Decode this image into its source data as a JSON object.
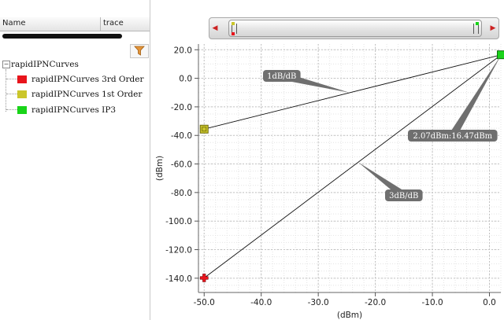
{
  "panel": {
    "col_name": "Name",
    "col_trace": "trace",
    "root_label": "rapidIPNCurves",
    "items": [
      {
        "label": "rapidIPNCurves  3rd Order",
        "color": "#e8141c"
      },
      {
        "label": "rapidIPNCurves  1st Order",
        "color": "#cbc62a"
      },
      {
        "label": "rapidIPNCurves  IP3",
        "color": "#19d419"
      }
    ]
  },
  "chart_data": {
    "type": "line",
    "xlabel": "(dBm)",
    "ylabel": "(dBm)",
    "xlim": [
      -51,
      2
    ],
    "ylim": [
      -150,
      24
    ],
    "x_ticks": [
      -50,
      -40,
      -30,
      -20,
      -10,
      0
    ],
    "x_tick_labels": [
      "-50.0",
      "-40.0",
      "-30.0",
      "-20.0",
      "-10.0",
      "0.0"
    ],
    "y_ticks": [
      20,
      0,
      -20,
      -40,
      -60,
      -80,
      -100,
      -120,
      -140
    ],
    "y_tick_labels": [
      "20.0",
      "0.0",
      "-20.0",
      "-40.0",
      "-60.0",
      "-80.0",
      "-100.0",
      "-120.0",
      "-140.0"
    ],
    "grid": true,
    "series": [
      {
        "name": "rapidIPNCurves  1st Order",
        "x": [
          -50,
          2.07
        ],
        "y": [
          -35.6,
          16.47
        ],
        "color": "#cbc62a"
      },
      {
        "name": "rapidIPNCurves  3rd Order",
        "x": [
          -50,
          2.07
        ],
        "y": [
          -139.8,
          16.47
        ],
        "color": "#e8141c"
      }
    ],
    "ip3_point": {
      "x": 2.07,
      "y": 16.47,
      "color": "#19d419"
    },
    "annotations": [
      {
        "text": "1dB/dB",
        "x": -26.5,
        "y": -5.5
      },
      {
        "text": "3dB/dB",
        "x": -21,
        "y": -63.5
      },
      {
        "text": "2.07dBm:16.47dBm",
        "x": 2.07,
        "y": 16.47
      }
    ]
  }
}
